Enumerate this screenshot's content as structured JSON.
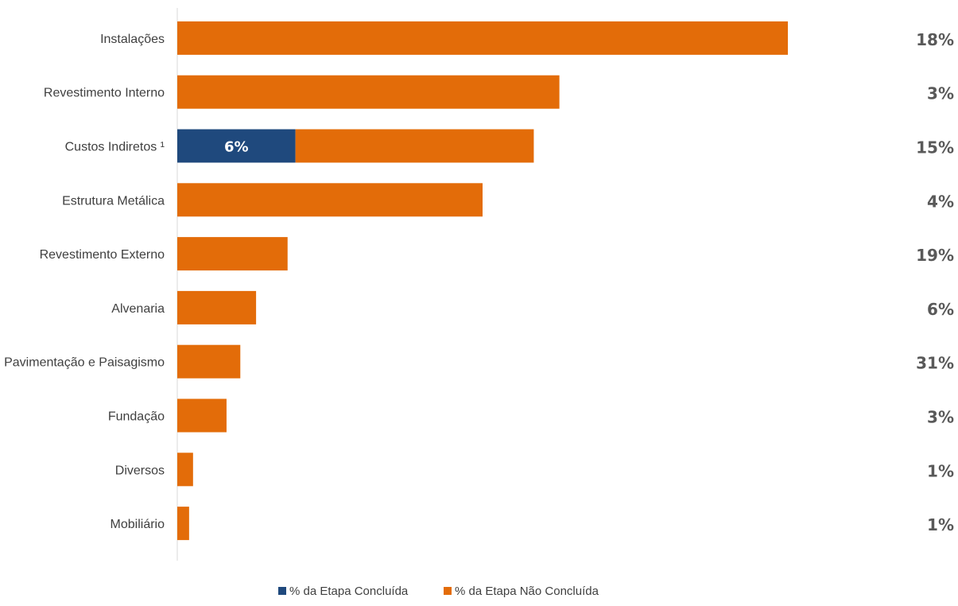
{
  "chart_data": {
    "type": "bar",
    "orientation": "horizontal",
    "stacked": true,
    "categories": [
      "Instalações",
      "Revestimento Interno",
      "Custos Indiretos ¹",
      "Estrutura Metálica",
      "Revestimento Externo",
      "Alvenaria",
      "Pavimentação e Paisagismo",
      "Fundação",
      "Diversos",
      "Mobiliário"
    ],
    "series": [
      {
        "name": "% da Etapa Concluída",
        "color": "#1f497d",
        "values": [
          0,
          0,
          6,
          0,
          0,
          0,
          0,
          0,
          0,
          0
        ],
        "labels": [
          "",
          "",
          "6%",
          "",
          "",
          "",
          "",
          "",
          "",
          ""
        ]
      },
      {
        "name": "% da Etapa Não Concluída",
        "color": "#e36c09",
        "values": [
          31,
          19.4,
          12.1,
          15.5,
          5.6,
          4,
          3.2,
          2.5,
          0.8,
          0.6
        ],
        "labels": [
          "",
          "",
          "",
          "",
          "",
          "",
          "",
          "",
          "",
          ""
        ]
      }
    ],
    "right_labels": [
      "18%",
      "3%",
      "15%",
      "4%",
      "19%",
      "6%",
      "31%",
      "3%",
      "1%",
      "1%"
    ],
    "xlim": [
      0,
      31
    ],
    "grid": false,
    "legend_position": "bottom"
  }
}
